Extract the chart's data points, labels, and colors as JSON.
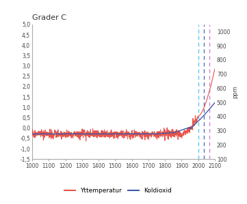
{
  "title": "Grader C",
  "ylabel_right": "ppm",
  "xlim": [
    1000,
    2100
  ],
  "ylim_left": [
    -1.5,
    5.0
  ],
  "ylim_right": [
    100,
    1050
  ],
  "xticks": [
    1000,
    1100,
    1200,
    1300,
    1400,
    1500,
    1600,
    1700,
    1800,
    1900,
    2000,
    2100
  ],
  "yticks_left": [
    -1.5,
    -1.0,
    -0.5,
    0.0,
    0.5,
    1.0,
    1.5,
    2.0,
    2.5,
    3.0,
    3.5,
    4.0,
    4.5,
    5.0
  ],
  "yticks_right": [
    100,
    200,
    300,
    400,
    500,
    600,
    700,
    800,
    900,
    1000
  ],
  "legend_labels": [
    "Yttemperatur",
    "Koldioxid"
  ],
  "legend_colors": [
    "#e8534a",
    "#3d5ba8"
  ],
  "vline1_x": 2000,
  "vline2_x": 2035,
  "vline3_x": 2065,
  "vline1_color": "#5bc8f5",
  "vline2_color": "#6666bb",
  "vline3_color": "#cc88cc",
  "bg_color": "#ffffff",
  "axis_color": "#aaaaaa",
  "temp_color": "#e8534a",
  "co2_color": "#3d5ba8"
}
